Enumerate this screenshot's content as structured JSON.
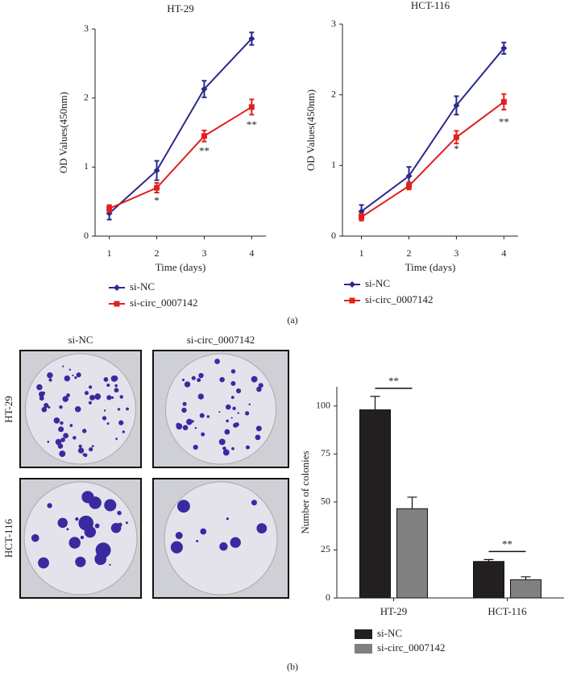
{
  "chart_data": [
    {
      "type": "line",
      "title": "HT-29",
      "x": [
        1,
        2,
        3,
        4
      ],
      "xlim": [
        0.7,
        4.3
      ],
      "xticks": [
        1,
        2,
        3,
        4
      ],
      "ylim": [
        0,
        3
      ],
      "yticks": [
        0,
        1,
        2,
        3
      ],
      "x_label": "Time (days)",
      "y_label": "OD Values(450nm)",
      "series": [
        {
          "name": "si-NC",
          "color": "#2b2a8c",
          "marker": "diamond",
          "values": [
            0.33,
            0.95,
            2.13,
            2.86
          ],
          "errors": [
            0.09,
            0.14,
            0.12,
            0.09
          ]
        },
        {
          "name": "si-circ_0007142",
          "color": "#e02020",
          "marker": "square",
          "values": [
            0.4,
            0.7,
            1.45,
            1.87
          ],
          "errors": [
            0.05,
            0.07,
            0.08,
            0.11
          ]
        }
      ],
      "annotations": [
        {
          "x": 2,
          "y": 0.5,
          "text": "*"
        },
        {
          "x": 3,
          "y": 1.22,
          "text": "**"
        },
        {
          "x": 4,
          "y": 1.6,
          "text": "**"
        }
      ]
    },
    {
      "type": "line",
      "title": "HCT-116",
      "x": [
        1,
        2,
        3,
        4
      ],
      "xlim": [
        0.6,
        4.3
      ],
      "xticks": [
        1,
        2,
        3,
        4
      ],
      "ylim": [
        0,
        3
      ],
      "yticks": [
        0,
        1,
        2,
        3
      ],
      "x_label": "Time (days)",
      "y_label": "OD Values(450nm)",
      "series": [
        {
          "name": "si-NC",
          "color": "#2b2a8c",
          "marker": "diamond",
          "values": [
            0.35,
            0.85,
            1.85,
            2.66
          ],
          "errors": [
            0.09,
            0.13,
            0.13,
            0.08
          ]
        },
        {
          "name": "si-circ_0007142",
          "color": "#e02020",
          "marker": "square",
          "values": [
            0.27,
            0.71,
            1.4,
            1.9
          ],
          "errors": [
            0.05,
            0.05,
            0.09,
            0.11
          ]
        }
      ],
      "annotations": [
        {
          "x": 3,
          "y": 1.22,
          "text": "*"
        },
        {
          "x": 4,
          "y": 1.6,
          "text": "**"
        }
      ]
    },
    {
      "type": "bar",
      "categories": [
        "HT-29",
        "HCT-116"
      ],
      "ylim": [
        0,
        110
      ],
      "yticks": [
        0,
        25,
        50,
        75,
        100
      ],
      "y_label": "Number of colonies",
      "series": [
        {
          "name": "si-NC",
          "color": "#231f20",
          "values": [
            98,
            19
          ],
          "errors": [
            7,
            1
          ]
        },
        {
          "name": "si-circ_0007142",
          "color": "#808080",
          "values": [
            46.5,
            9.5
          ],
          "errors": [
            6,
            1.5
          ]
        }
      ],
      "annotations": [
        "**",
        "**"
      ]
    }
  ],
  "panel_labels": [
    "(a)",
    "(b)"
  ],
  "colony_images": {
    "columns": [
      "si-NC",
      "si-circ_0007142"
    ],
    "rows": [
      "HT-29",
      "HCT-116"
    ]
  }
}
